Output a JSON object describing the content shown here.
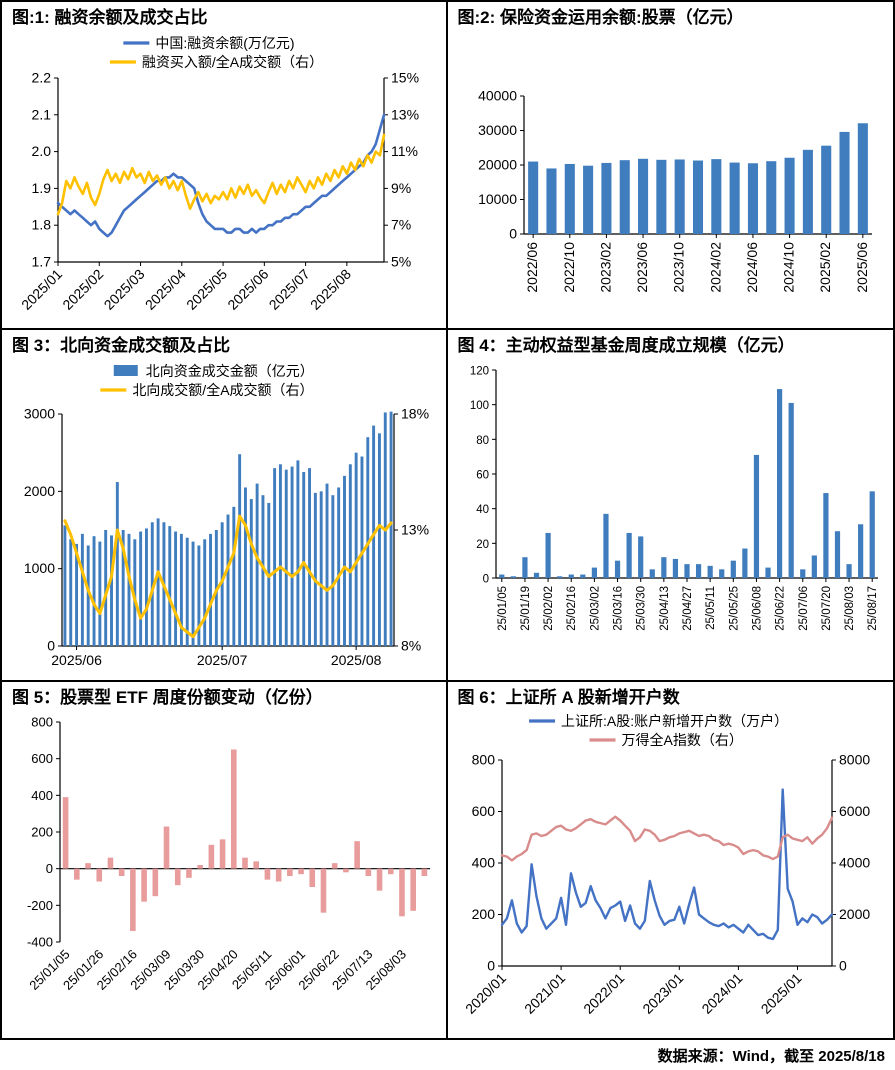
{
  "page": {
    "footer": "数据来源：Wind，截至 2025/8/18"
  },
  "chart_data": [
    {
      "id": "margin-balance",
      "type": "line",
      "title": "图:1: 融资余额及成交占比",
      "legend": [
        {
          "label": "中国:融资余额(万亿元)",
          "color": "#4472C4",
          "marker": "line"
        },
        {
          "label": "融资买入额/全A成交额（右）",
          "color": "#FFC000",
          "marker": "line"
        }
      ],
      "left_axis": {
        "min": 1.7,
        "max": 2.2,
        "ticks": [
          1.7,
          1.8,
          1.9,
          2.0,
          2.1,
          2.2
        ],
        "tick_labels": [
          "1.7",
          "1.8",
          "1.9",
          "2.0",
          "2.1",
          "2.2"
        ]
      },
      "right_axis": {
        "min": 5,
        "max": 15,
        "ticks": [
          5,
          7,
          9,
          11,
          13,
          15
        ],
        "tick_labels": [
          "5%",
          "7%",
          "9%",
          "11%",
          "13%",
          "15%"
        ]
      },
      "x_ticks": [
        {
          "label": "2025/01",
          "i": 0
        },
        {
          "label": "2025/02",
          "i": 10
        },
        {
          "label": "2025/03",
          "i": 20
        },
        {
          "label": "2025/04",
          "i": 30
        },
        {
          "label": "2025/05",
          "i": 40
        },
        {
          "label": "2025/06",
          "i": 50
        },
        {
          "label": "2025/07",
          "i": 60
        },
        {
          "label": "2025/08",
          "i": 70
        }
      ],
      "series": [
        {
          "name": "中国:融资余额(万亿元)",
          "type": "line",
          "axis": "left",
          "color": "#4472C4",
          "values": [
            1.86,
            1.85,
            1.84,
            1.83,
            1.84,
            1.83,
            1.82,
            1.81,
            1.8,
            1.81,
            1.79,
            1.78,
            1.77,
            1.78,
            1.8,
            1.82,
            1.84,
            1.85,
            1.86,
            1.87,
            1.88,
            1.89,
            1.9,
            1.91,
            1.92,
            1.92,
            1.93,
            1.93,
            1.94,
            1.93,
            1.93,
            1.92,
            1.91,
            1.9,
            1.86,
            1.83,
            1.81,
            1.8,
            1.79,
            1.79,
            1.79,
            1.78,
            1.78,
            1.79,
            1.79,
            1.78,
            1.78,
            1.79,
            1.78,
            1.79,
            1.79,
            1.8,
            1.8,
            1.81,
            1.81,
            1.82,
            1.82,
            1.83,
            1.83,
            1.84,
            1.85,
            1.85,
            1.86,
            1.87,
            1.88,
            1.88,
            1.89,
            1.9,
            1.91,
            1.92,
            1.93,
            1.94,
            1.95,
            1.96,
            1.97,
            1.99,
            2.0,
            2.02,
            2.06,
            2.1
          ]
        },
        {
          "name": "融资买入额/全A成交额（右）",
          "type": "line",
          "axis": "right",
          "color": "#FFC000",
          "values": [
            7.6,
            8.2,
            9.4,
            9.0,
            9.6,
            9.1,
            8.7,
            9.3,
            8.5,
            8.1,
            8.7,
            9.5,
            10.0,
            9.4,
            9.8,
            9.3,
            9.9,
            9.5,
            10.1,
            9.6,
            9.8,
            9.3,
            9.9,
            9.4,
            9.7,
            9.2,
            9.6,
            9.0,
            9.4,
            8.9,
            9.4,
            8.6,
            7.9,
            8.4,
            8.8,
            8.3,
            8.7,
            8.2,
            8.6,
            8.4,
            8.8,
            8.4,
            9.0,
            8.5,
            9.1,
            8.7,
            9.2,
            8.6,
            8.9,
            8.5,
            8.2,
            8.8,
            9.3,
            8.7,
            9.2,
            8.8,
            9.4,
            9.0,
            9.6,
            9.2,
            8.8,
            9.4,
            9.0,
            9.6,
            9.2,
            9.8,
            9.4,
            10.0,
            9.6,
            10.2,
            9.8,
            10.4,
            10.0,
            10.6,
            10.2,
            10.8,
            10.4,
            11.0,
            10.8,
            11.9
          ]
        }
      ]
    },
    {
      "id": "insurance-equity",
      "type": "bar",
      "title": "图:2: 保险资金运用余额:股票（亿元）",
      "legend": [],
      "left_axis": {
        "min": 0,
        "max": 40000,
        "ticks": [
          0,
          10000,
          20000,
          30000,
          40000
        ],
        "tick_labels": [
          "0",
          "10000",
          "20000",
          "30000",
          "40000"
        ]
      },
      "right_axis": null,
      "x_ticks": [
        {
          "label": "2022/06",
          "i": 0
        },
        {
          "label": "2022/10",
          "i": 2
        },
        {
          "label": "2023/02",
          "i": 4
        },
        {
          "label": "2023/06",
          "i": 6
        },
        {
          "label": "2023/10",
          "i": 8
        },
        {
          "label": "2024/02",
          "i": 10
        },
        {
          "label": "2024/06",
          "i": 12
        },
        {
          "label": "2024/10",
          "i": 14
        },
        {
          "label": "2025/02",
          "i": 16
        },
        {
          "label": "2025/06",
          "i": 18
        }
      ],
      "series": [
        {
          "name": "保险资金运用余额:股票",
          "type": "bar",
          "axis": "left",
          "color": "#3F7DBE",
          "values": [
            21000,
            19000,
            20300,
            19800,
            20600,
            21400,
            21800,
            21500,
            21600,
            21300,
            21700,
            20700,
            20500,
            21100,
            22100,
            24400,
            25600,
            29600,
            32100
          ]
        }
      ]
    },
    {
      "id": "northbound-turnover",
      "type": "combo",
      "title": "图 3：北向资金成交额及占比",
      "legend": [
        {
          "label": "北向资金成交金额（亿元）",
          "color": "#3F7DBE",
          "marker": "box"
        },
        {
          "label": "北向成交额/全A成交额（右）",
          "color": "#FFC000",
          "marker": "line"
        }
      ],
      "left_axis": {
        "min": 0,
        "max": 3000,
        "ticks": [
          0,
          1000,
          2000,
          3000
        ],
        "tick_labels": [
          "0",
          "1000",
          "2000",
          "3000"
        ]
      },
      "right_axis": {
        "min": 8,
        "max": 18,
        "ticks": [
          8,
          13,
          18
        ],
        "tick_labels": [
          "8%",
          "13%",
          "18%"
        ]
      },
      "x_ticks": [
        {
          "label": "2025/06",
          "i": 2
        },
        {
          "label": "2025/07",
          "i": 27
        },
        {
          "label": "2025/08",
          "i": 50
        }
      ],
      "series": [
        {
          "name": "北向资金成交金额（亿元）",
          "type": "bar",
          "axis": "left",
          "color": "#3F7DBE",
          "values": [
            1560,
            1380,
            1320,
            1450,
            1300,
            1420,
            1350,
            1500,
            1430,
            2120,
            1500,
            1450,
            1380,
            1480,
            1520,
            1600,
            1650,
            1600,
            1550,
            1480,
            1450,
            1400,
            1350,
            1300,
            1380,
            1450,
            1500,
            1600,
            1700,
            1800,
            2480,
            2050,
            1900,
            2100,
            1950,
            1850,
            2300,
            2350,
            2280,
            2320,
            2400,
            2250,
            2300,
            1980,
            2000,
            2100,
            1950,
            2050,
            2200,
            2350,
            2500,
            2450,
            2700,
            2850,
            2750,
            3020,
            3030
          ]
        },
        {
          "name": "北向成交额/全A成交额（右）",
          "type": "line",
          "axis": "right",
          "color": "#FFC000",
          "values": [
            13.4,
            12.8,
            12.0,
            11.2,
            10.4,
            9.8,
            9.4,
            10.2,
            11.0,
            13.0,
            12.2,
            11.0,
            10.0,
            9.2,
            9.6,
            10.4,
            11.2,
            10.6,
            10.0,
            9.4,
            8.8,
            8.6,
            8.4,
            8.8,
            9.2,
            9.8,
            10.4,
            10.8,
            11.4,
            12.0,
            13.6,
            13.2,
            12.4,
            11.8,
            11.4,
            11.0,
            11.2,
            11.4,
            11.2,
            11.0,
            11.2,
            11.6,
            11.2,
            10.8,
            10.6,
            10.4,
            10.6,
            11.0,
            11.4,
            11.2,
            11.6,
            12.0,
            12.4,
            12.8,
            13.2,
            13.0,
            13.3
          ]
        }
      ]
    },
    {
      "id": "active-fund-issuance",
      "type": "bar",
      "title": "图 4：主动权益型基金周度成立规模（亿元）",
      "legend": [],
      "left_axis": {
        "min": 0,
        "max": 120,
        "ticks": [
          0,
          20,
          40,
          60,
          80,
          100,
          120
        ],
        "tick_labels": [
          "0",
          "20",
          "40",
          "60",
          "80",
          "100",
          "120"
        ]
      },
      "right_axis": null,
      "x_ticks": [
        {
          "label": "25/01/05",
          "i": 0
        },
        {
          "label": "25/01/19",
          "i": 2
        },
        {
          "label": "25/02/02",
          "i": 4
        },
        {
          "label": "25/02/16",
          "i": 6
        },
        {
          "label": "25/03/02",
          "i": 8
        },
        {
          "label": "25/03/16",
          "i": 10
        },
        {
          "label": "25/03/30",
          "i": 12
        },
        {
          "label": "25/04/13",
          "i": 14
        },
        {
          "label": "25/04/27",
          "i": 16
        },
        {
          "label": "25/05/11",
          "i": 18
        },
        {
          "label": "25/05/25",
          "i": 20
        },
        {
          "label": "25/06/08",
          "i": 22
        },
        {
          "label": "25/06/22",
          "i": 24
        },
        {
          "label": "25/07/06",
          "i": 26
        },
        {
          "label": "25/07/20",
          "i": 28
        },
        {
          "label": "25/08/03",
          "i": 30
        },
        {
          "label": "25/08/17",
          "i": 32
        }
      ],
      "series": [
        {
          "name": "主动权益型基金周度成立规模",
          "type": "bar",
          "axis": "left",
          "color": "#3F7DBE",
          "values": [
            2,
            1,
            12,
            3,
            26,
            1,
            2,
            2,
            6,
            37,
            10,
            26,
            24,
            5,
            12,
            11,
            8,
            8,
            7,
            5,
            10,
            17,
            71,
            6,
            109,
            101,
            5,
            13,
            49,
            27,
            8,
            31,
            50
          ]
        }
      ]
    },
    {
      "id": "etf-share-change",
      "type": "bar",
      "title": "图 5：股票型 ETF 周度份额变动（亿份）",
      "legend": [],
      "left_axis": {
        "min": -400,
        "max": 800,
        "ticks": [
          -400,
          -200,
          0,
          200,
          400,
          600,
          800
        ],
        "tick_labels": [
          "-400",
          "-200",
          "0",
          "200",
          "400",
          "600",
          "800"
        ]
      },
      "right_axis": null,
      "x_axis_at": 0,
      "x_ticks": [
        {
          "label": "25/01/05",
          "i": 0
        },
        {
          "label": "25/01/26",
          "i": 3
        },
        {
          "label": "25/02/16",
          "i": 6
        },
        {
          "label": "25/03/09",
          "i": 9
        },
        {
          "label": "25/03/30",
          "i": 12
        },
        {
          "label": "25/04/20",
          "i": 15
        },
        {
          "label": "25/05/11",
          "i": 18
        },
        {
          "label": "25/06/01",
          "i": 21
        },
        {
          "label": "25/06/22",
          "i": 24
        },
        {
          "label": "25/07/13",
          "i": 27
        },
        {
          "label": "25/08/03",
          "i": 30
        }
      ],
      "series": [
        {
          "name": "股票型ETF周度份额变动",
          "type": "bar",
          "axis": "left",
          "color": "#E89C9C",
          "values": [
            390,
            -60,
            30,
            -70,
            60,
            -40,
            -340,
            -180,
            -150,
            230,
            -90,
            -50,
            20,
            130,
            160,
            650,
            60,
            40,
            -60,
            -70,
            -40,
            -30,
            -100,
            -240,
            30,
            -20,
            150,
            -40,
            -120,
            -30,
            -260,
            -230,
            -40
          ]
        }
      ]
    },
    {
      "id": "new-accounts",
      "type": "line",
      "title": "图 6：上证所 A 股新增开户数",
      "legend": [
        {
          "label": "上证所:A股:账户新增开户数（万户）",
          "color": "#4472C4",
          "marker": "line"
        },
        {
          "label": "万得全A指数（右）",
          "color": "#D98C8C",
          "marker": "line"
        }
      ],
      "left_axis": {
        "min": 0,
        "max": 800,
        "ticks": [
          0,
          200,
          400,
          600,
          800
        ],
        "tick_labels": [
          "0",
          "200",
          "400",
          "600",
          "800"
        ]
      },
      "right_axis": {
        "min": 0,
        "max": 8000,
        "ticks": [
          0,
          2000,
          4000,
          6000,
          8000
        ],
        "tick_labels": [
          "0",
          "2000",
          "4000",
          "6000",
          "8000"
        ]
      },
      "x_ticks": [
        {
          "label": "2020/01",
          "i": 0
        },
        {
          "label": "2021/01",
          "i": 12
        },
        {
          "label": "2022/01",
          "i": 24
        },
        {
          "label": "2023/01",
          "i": 36
        },
        {
          "label": "2024/01",
          "i": 48
        },
        {
          "label": "2025/01",
          "i": 60
        }
      ],
      "series": [
        {
          "name": "上证所:A股:账户新增开户数（万户）",
          "type": "line",
          "axis": "left",
          "color": "#4472C4",
          "values": [
            160,
            185,
            255,
            165,
            130,
            155,
            395,
            270,
            185,
            145,
            165,
            185,
            265,
            160,
            360,
            285,
            230,
            245,
            310,
            255,
            225,
            185,
            225,
            235,
            250,
            175,
            235,
            165,
            145,
            175,
            330,
            255,
            195,
            160,
            175,
            180,
            230,
            165,
            240,
            305,
            200,
            185,
            170,
            160,
            155,
            165,
            150,
            160,
            145,
            130,
            160,
            140,
            120,
            125,
            110,
            105,
            140,
            685,
            300,
            250,
            160,
            185,
            170,
            200,
            190,
            165,
            180,
            200
          ]
        },
        {
          "name": "万得全A指数（右）",
          "type": "line",
          "axis": "right",
          "color": "#D98C8C",
          "values": [
            4300,
            4250,
            4100,
            4250,
            4350,
            4500,
            5100,
            5150,
            5050,
            5100,
            5250,
            5400,
            5450,
            5300,
            5250,
            5350,
            5500,
            5650,
            5700,
            5600,
            5550,
            5500,
            5650,
            5800,
            5650,
            5450,
            5250,
            4850,
            5000,
            5300,
            5250,
            5100,
            4850,
            4900,
            5000,
            5050,
            5150,
            5200,
            5250,
            5150,
            5050,
            5100,
            5050,
            4900,
            4850,
            4700,
            4750,
            4700,
            4600,
            4350,
            4450,
            4500,
            4450,
            4300,
            4250,
            4150,
            4250,
            5000,
            5100,
            4950,
            4900,
            4850,
            5000,
            4750,
            4950,
            5100,
            5350,
            5750
          ]
        }
      ]
    }
  ]
}
